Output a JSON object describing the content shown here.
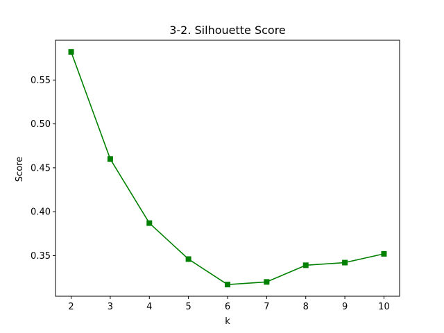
{
  "chart_data": {
    "type": "line",
    "title": "3-2. Silhouette Score",
    "xlabel": "k",
    "ylabel": "Score",
    "x": [
      2,
      3,
      4,
      5,
      6,
      7,
      8,
      9,
      10
    ],
    "series": [
      {
        "values": [
          0.582,
          0.46,
          0.387,
          0.346,
          0.317,
          0.32,
          0.339,
          0.342,
          0.352
        ],
        "color": "#008000",
        "marker": "square"
      }
    ],
    "xticks": [
      "2",
      "3",
      "4",
      "5",
      "6",
      "7",
      "8",
      "9",
      "10"
    ],
    "yticks": [
      "0.35",
      "0.40",
      "0.45",
      "0.50",
      "0.55"
    ],
    "xlim": [
      1.6,
      10.4
    ],
    "ylim": [
      0.3037,
      0.5953
    ],
    "grid": false,
    "legend": "none"
  }
}
